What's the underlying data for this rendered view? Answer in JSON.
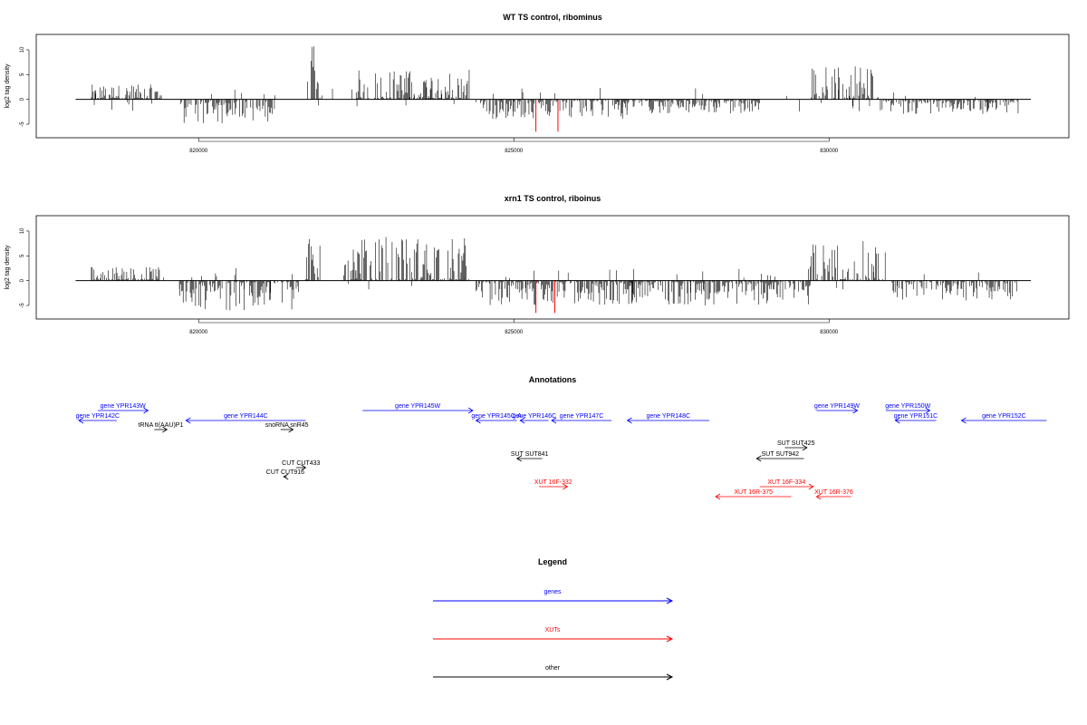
{
  "chart_data": [
    {
      "type": "bar",
      "title": "WT TS control, ribominus",
      "ylabel": "log2 tag density",
      "xlim": [
        818000,
        833200
      ],
      "ylim": [
        -7,
        12
      ],
      "x_ticks": [
        820000,
        825000,
        830000
      ],
      "y_ticks": [
        -5,
        0,
        5,
        10
      ],
      "grid": false,
      "clusters": [
        {
          "strand": "+",
          "from": 818300,
          "to": 819400,
          "max": 3
        },
        {
          "strand": "-",
          "from": 819700,
          "to": 821200,
          "max": 5
        },
        {
          "strand": "+",
          "from": 821700,
          "to": 821950,
          "max": 11
        },
        {
          "strand": "+",
          "from": 822500,
          "to": 824300,
          "max": 6
        },
        {
          "strand": "-",
          "from": 824400,
          "to": 826800,
          "max": 4
        },
        {
          "strand": "-",
          "from": 826600,
          "to": 828900,
          "max": 3
        },
        {
          "strand": "+",
          "from": 829700,
          "to": 830800,
          "max": 7
        },
        {
          "strand": "-",
          "from": 830800,
          "to": 833000,
          "max": 3
        }
      ],
      "highlights": [
        {
          "x": 825350,
          "value": -6.5
        },
        {
          "x": 825700,
          "value": -6.5
        }
      ]
    },
    {
      "type": "bar",
      "title": "xrn1 TS control, riboinus",
      "ylabel": "log2 tag density",
      "xlim": [
        818000,
        833200
      ],
      "ylim": [
        -7,
        12
      ],
      "x_ticks": [
        820000,
        825000,
        830000
      ],
      "y_ticks": [
        -5,
        0,
        5,
        10
      ],
      "grid": false,
      "clusters": [
        {
          "strand": "+",
          "from": 818300,
          "to": 819400,
          "max": 3
        },
        {
          "strand": "-",
          "from": 819700,
          "to": 821600,
          "max": 6
        },
        {
          "strand": "+",
          "from": 821700,
          "to": 821950,
          "max": 11
        },
        {
          "strand": "+",
          "from": 822300,
          "to": 824300,
          "max": 9
        },
        {
          "strand": "-",
          "from": 824400,
          "to": 826900,
          "max": 5
        },
        {
          "strand": "-",
          "from": 826800,
          "to": 829700,
          "max": 5
        },
        {
          "strand": "+",
          "from": 829700,
          "to": 830900,
          "max": 8
        },
        {
          "strand": "-",
          "from": 831000,
          "to": 833000,
          "max": 4
        }
      ],
      "highlights": [
        {
          "x": 825350,
          "value": -6.5
        },
        {
          "x": 825650,
          "value": -6.5
        }
      ]
    }
  ],
  "annotations": {
    "title": "Annotations",
    "items": [
      {
        "label": "gene YPR143W",
        "start": 818400,
        "end": 819200,
        "dir": "right",
        "color": "#0000ff",
        "row": 0
      },
      {
        "label": "gene YPR142C",
        "start": 818100,
        "end": 818700,
        "dir": "left",
        "color": "#0000ff",
        "row": 1
      },
      {
        "label": "gene YPR144C",
        "start": 819800,
        "end": 821700,
        "dir": "left",
        "color": "#0000ff",
        "row": 1
      },
      {
        "label": "gene YPR145W",
        "start": 822600,
        "end": 824350,
        "dir": "right",
        "color": "#0000ff",
        "row": 0
      },
      {
        "label": "gene YPR145C-A",
        "start": 824400,
        "end": 825050,
        "dir": "left",
        "color": "#0000ff",
        "row": 1
      },
      {
        "label": "gene YPR146C",
        "start": 825100,
        "end": 825550,
        "dir": "left",
        "color": "#0000ff",
        "row": 1
      },
      {
        "label": "gene YPR147C",
        "start": 825600,
        "end": 826550,
        "dir": "left",
        "color": "#0000ff",
        "row": 1
      },
      {
        "label": "gene YPR148C",
        "start": 826800,
        "end": 828100,
        "dir": "left",
        "color": "#0000ff",
        "row": 1
      },
      {
        "label": "gene YPR149W",
        "start": 829800,
        "end": 830450,
        "dir": "right",
        "color": "#0000ff",
        "row": 0
      },
      {
        "label": "gene YPR150W",
        "start": 830900,
        "end": 831600,
        "dir": "right",
        "color": "#0000ff",
        "row": 0
      },
      {
        "label": "gene YPR151C",
        "start": 831050,
        "end": 831700,
        "dir": "left",
        "color": "#0000ff",
        "row": 1
      },
      {
        "label": "gene YPR152C",
        "start": 832100,
        "end": 833450,
        "dir": "left",
        "color": "#0000ff",
        "row": 1
      },
      {
        "label": "tRNA tI(AAU)P1",
        "start": 819300,
        "end": 819500,
        "dir": "right",
        "color": "#000000",
        "row": 2
      },
      {
        "label": "snoRNA snR45",
        "start": 821300,
        "end": 821500,
        "dir": "right",
        "color": "#000000",
        "row": 2
      },
      {
        "label": "SUT SUT425",
        "start": 829300,
        "end": 829650,
        "dir": "right",
        "color": "#000000",
        "row": 3
      },
      {
        "label": "SUT SUT942",
        "start": 828850,
        "end": 829600,
        "dir": "left",
        "color": "#000000",
        "row": 4
      },
      {
        "label": "SUT SUT841",
        "start": 825050,
        "end": 825450,
        "dir": "left",
        "color": "#000000",
        "row": 4
      },
      {
        "label": "CUT CUT433",
        "start": 821550,
        "end": 821700,
        "dir": "right",
        "color": "#000000",
        "row": 5
      },
      {
        "label": "CUT CUT916",
        "start": 821350,
        "end": 821400,
        "dir": "left",
        "color": "#000000",
        "row": 6
      },
      {
        "label": "XUT 16F-332",
        "start": 825400,
        "end": 825850,
        "dir": "right",
        "color": "#ff0000",
        "row": 7
      },
      {
        "label": "XUT 16F-334",
        "start": 828900,
        "end": 829750,
        "dir": "right",
        "color": "#ff0000",
        "row": 7
      },
      {
        "label": "XUT 16R-375",
        "start": 828200,
        "end": 829400,
        "dir": "left",
        "color": "#ff0000",
        "row": 8
      },
      {
        "label": "XUT 16R-376",
        "start": 829800,
        "end": 830350,
        "dir": "left",
        "color": "#ff0000",
        "row": 8
      }
    ]
  },
  "legend": {
    "title": "Legend",
    "entries": [
      {
        "label": "genes",
        "color": "#0000ff"
      },
      {
        "label": "XUTs",
        "color": "#ff0000"
      },
      {
        "label": "other",
        "color": "#000000"
      }
    ]
  }
}
